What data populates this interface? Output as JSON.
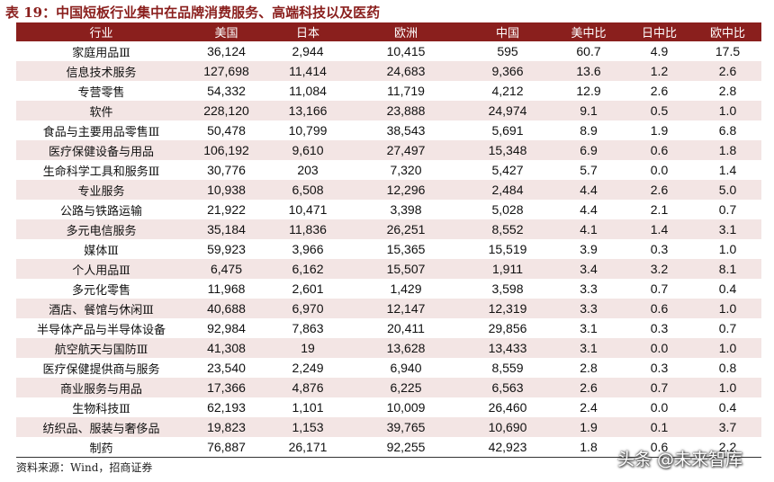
{
  "title": "表 19：中国短板行业集中在品牌消费服务、高端科技以及医药",
  "columns": [
    "行业",
    "美国",
    "日本",
    "欧洲",
    "中国",
    "美中比",
    "日中比",
    "欧中比"
  ],
  "rows": [
    [
      "家庭用品Ⅲ",
      "36,124",
      "2,944",
      "10,415",
      "595",
      "60.7",
      "4.9",
      "17.5"
    ],
    [
      "信息技术服务",
      "127,698",
      "11,414",
      "24,683",
      "9,366",
      "13.6",
      "1.2",
      "2.6"
    ],
    [
      "专营零售",
      "54,332",
      "11,084",
      "11,719",
      "4,212",
      "12.9",
      "2.6",
      "2.8"
    ],
    [
      "软件",
      "228,120",
      "13,166",
      "23,888",
      "24,974",
      "9.1",
      "0.5",
      "1.0"
    ],
    [
      "食品与主要用品零售Ⅲ",
      "50,478",
      "10,799",
      "38,543",
      "5,691",
      "8.9",
      "1.9",
      "6.8"
    ],
    [
      "医疗保健设备与用品",
      "106,192",
      "9,610",
      "27,497",
      "15,348",
      "6.9",
      "0.6",
      "1.8"
    ],
    [
      "生命科学工具和服务Ⅲ",
      "30,776",
      "203",
      "7,320",
      "5,427",
      "5.7",
      "0.0",
      "1.4"
    ],
    [
      "专业服务",
      "10,938",
      "6,508",
      "12,296",
      "2,484",
      "4.4",
      "2.6",
      "5.0"
    ],
    [
      "公路与铁路运输",
      "21,922",
      "10,471",
      "3,398",
      "5,028",
      "4.4",
      "2.1",
      "0.7"
    ],
    [
      "多元电信服务",
      "35,184",
      "11,836",
      "26,251",
      "8,552",
      "4.1",
      "1.4",
      "3.1"
    ],
    [
      "媒体Ⅲ",
      "59,923",
      "3,966",
      "15,365",
      "15,519",
      "3.9",
      "0.3",
      "1.0"
    ],
    [
      "个人用品Ⅲ",
      "6,475",
      "6,162",
      "15,507",
      "1,911",
      "3.4",
      "3.2",
      "8.1"
    ],
    [
      "多元化零售",
      "11,968",
      "2,601",
      "1,429",
      "3,598",
      "3.3",
      "0.7",
      "0.4"
    ],
    [
      "酒店、餐馆与休闲Ⅲ",
      "40,688",
      "6,970",
      "12,147",
      "12,319",
      "3.3",
      "0.6",
      "1.0"
    ],
    [
      "半导体产品与半导体设备",
      "92,984",
      "7,863",
      "20,411",
      "29,856",
      "3.1",
      "0.3",
      "0.7"
    ],
    [
      "航空航天与国防Ⅲ",
      "41,308",
      "19",
      "13,628",
      "13,433",
      "3.1",
      "0.0",
      "1.0"
    ],
    [
      "医疗保健提供商与服务",
      "23,540",
      "2,249",
      "6,940",
      "8,559",
      "2.8",
      "0.3",
      "0.8"
    ],
    [
      "商业服务与用品",
      "17,366",
      "4,876",
      "6,225",
      "6,563",
      "2.6",
      "0.7",
      "1.0"
    ],
    [
      "生物科技Ⅲ",
      "62,193",
      "1,101",
      "10,009",
      "26,460",
      "2.4",
      "0.0",
      "0.4"
    ],
    [
      "纺织品、服装与奢侈品",
      "19,823",
      "1,153",
      "39,765",
      "10,690",
      "1.9",
      "0.1",
      "3.7"
    ],
    [
      "制药",
      "76,887",
      "26,171",
      "92,255",
      "42,923",
      "1.8",
      "0.6",
      "2.2"
    ]
  ],
  "source": "资料来源：Wind，招商证券",
  "watermark": "头条 @未来智库",
  "colors": {
    "header_bg": "#8a1f1d",
    "title": "#8a1f1d",
    "alt_row": "#f3e5e4"
  }
}
